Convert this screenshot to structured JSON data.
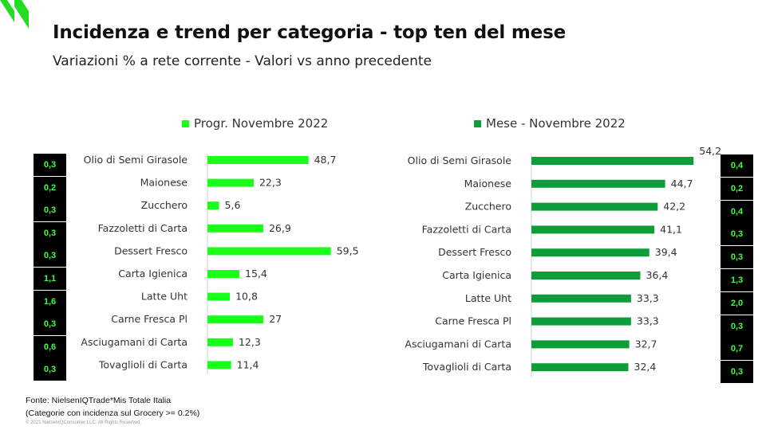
{
  "header": {
    "title": "Incidenza e trend per categoria - top ten del mese",
    "subtitle": "Variazioni % a rete corrente - Valori vs anno precedente"
  },
  "colors": {
    "left_bar": "#1aff1a",
    "right_bar": "#0f9d3a",
    "box_bg": "#000000",
    "box_text": "#3cff3c",
    "logo": "#22dd22"
  },
  "chart_data": [
    {
      "type": "bar",
      "orientation": "horizontal",
      "legend": "Progr. Novembre 2022",
      "categories": [
        "Olio di Semi Girasole",
        "Maionese",
        "Zucchero",
        "Fazzoletti di Carta",
        "Dessert Fresco",
        "Carta Igienica",
        "Latte Uht",
        "Carne Fresca Pl",
        "Asciugamani di Carta",
        "Tovaglioli di Carta"
      ],
      "values": [
        48.7,
        22.3,
        5.6,
        26.9,
        59.5,
        15.4,
        10.8,
        27,
        12.3,
        11.4
      ],
      "value_labels": [
        "48,7",
        "22,3",
        "5,6",
        "26,9",
        "59,5",
        "15,4",
        "10,8",
        "27",
        "12,3",
        "11,4"
      ],
      "incidence_labels": [
        "0,3",
        "0,2",
        "0,3",
        "0,3",
        "0,3",
        "1,1",
        "1,6",
        "0,3",
        "0,6",
        "0,3"
      ]
    },
    {
      "type": "bar",
      "orientation": "horizontal",
      "legend": "Mese - Novembre 2022",
      "categories": [
        "Olio di Semi Girasole",
        "Maionese",
        "Zucchero",
        "Fazzoletti di Carta",
        "Dessert Fresco",
        "Carta Igienica",
        "Latte Uht",
        "Carne Fresca Pl",
        "Asciugamani di Carta",
        "Tovaglioli di Carta"
      ],
      "values": [
        54.2,
        44.7,
        42.2,
        41.1,
        39.4,
        36.4,
        33.3,
        33.3,
        32.7,
        32.4
      ],
      "value_labels": [
        "54,2",
        "44,7",
        "42,2",
        "41,1",
        "39,4",
        "36,4",
        "33,3",
        "33,3",
        "32,7",
        "32,4"
      ],
      "incidence_labels": [
        "0,4",
        "0,2",
        "0,4",
        "0,3",
        "0,3",
        "1,3",
        "2,0",
        "0,3",
        "0,7",
        "0,3"
      ]
    }
  ],
  "footer": {
    "source": "Fonte: NielsenIQTrade*Mis Totale Italia",
    "note": "(Categorie con incidenza sul Grocery >= 0.2%)",
    "copyright": "© 2021 NielsenIQConsumer LLC. All Rights Reserved."
  }
}
